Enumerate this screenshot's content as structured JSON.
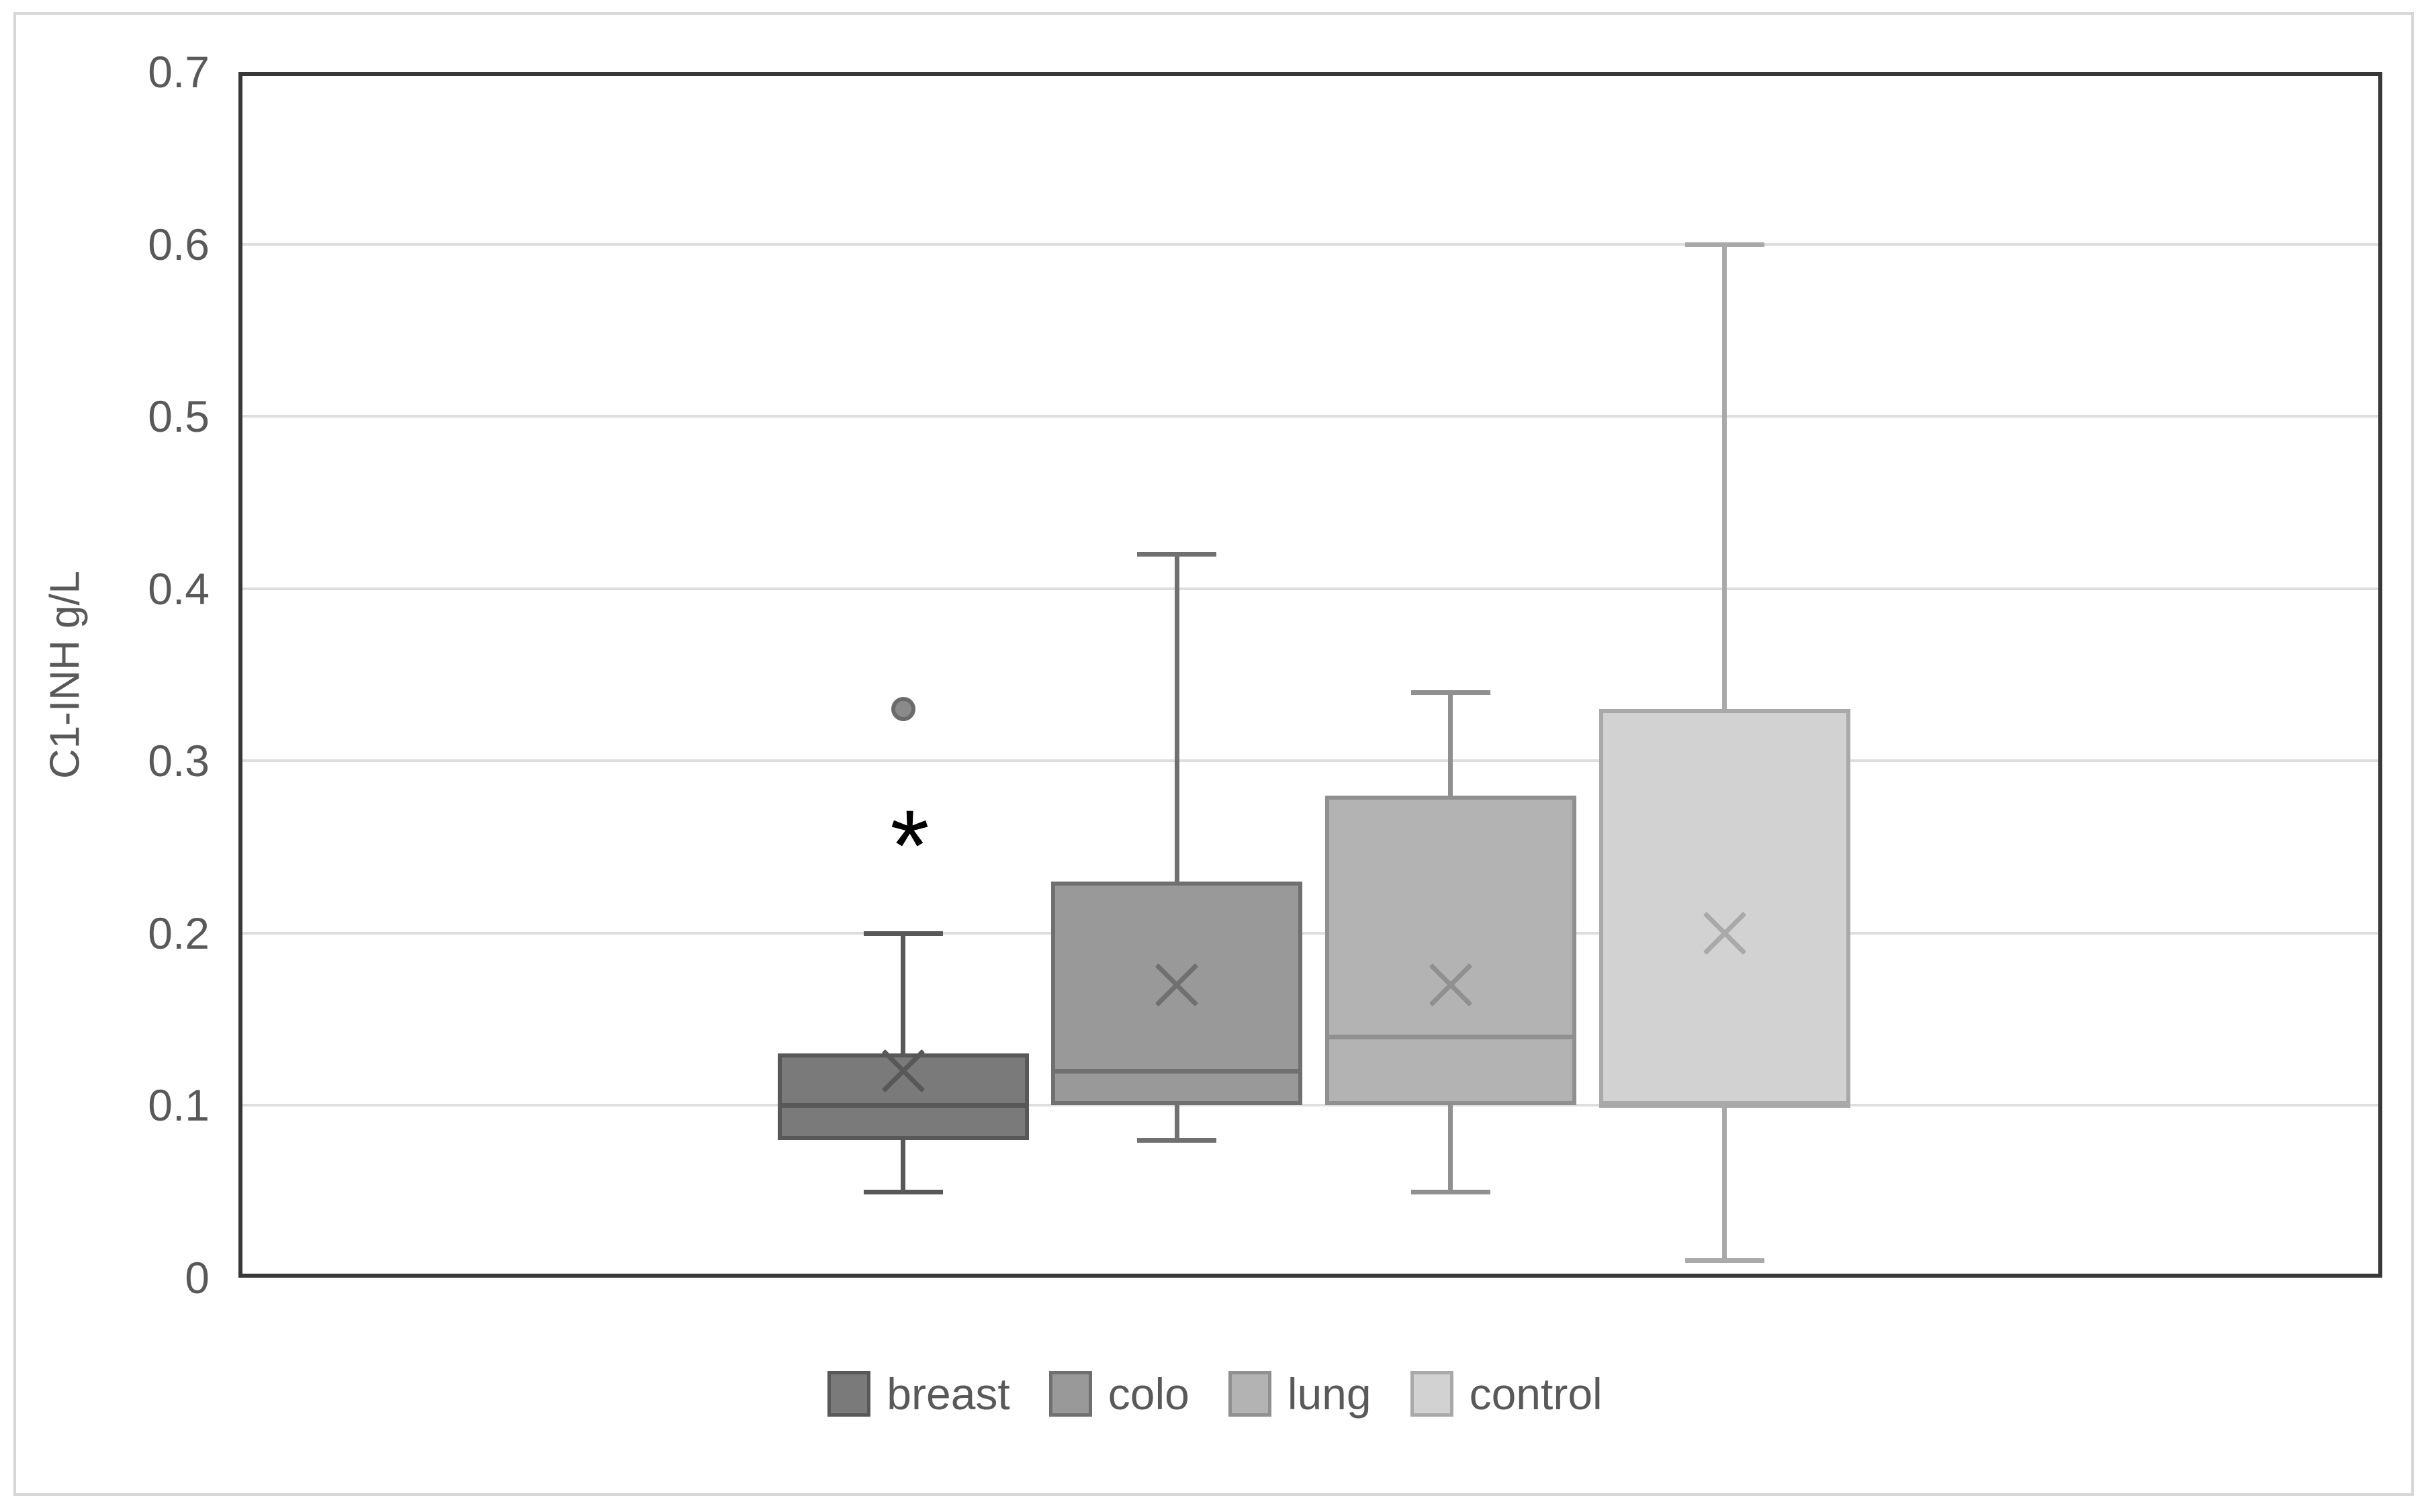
{
  "figure": {
    "background": "#ffffff",
    "frame_color": "#d7d7d7",
    "plot_border_color": "#383838",
    "gridline_color": "#dedede",
    "text_color": "#595959"
  },
  "chart_data": {
    "type": "box",
    "title": "",
    "xlabel": "",
    "ylabel": "C1-INH g/L",
    "ylim": [
      0,
      0.7
    ],
    "ytick_values": [
      0,
      0.1,
      0.2,
      0.3,
      0.4,
      0.5,
      0.6,
      0.7
    ],
    "ytick_labels": [
      "0",
      "0.1",
      "0.2",
      "0.3",
      "0.4",
      "0.5",
      "0.6",
      "0.7"
    ],
    "grid": "horizontal",
    "legend_position": "bottom",
    "series": [
      {
        "name": "breast",
        "fill": "#7a7a7a",
        "stroke": "#585858",
        "min": 0.05,
        "q1": 0.08,
        "median": 0.1,
        "q3": 0.13,
        "max": 0.2,
        "mean": 0.12,
        "outliers": [
          0.33
        ]
      },
      {
        "name": "colo",
        "fill": "#999999",
        "stroke": "#707070",
        "min": 0.08,
        "q1": 0.1,
        "median": 0.12,
        "q3": 0.23,
        "max": 0.42,
        "mean": 0.17,
        "outliers": []
      },
      {
        "name": "lung",
        "fill": "#b3b3b3",
        "stroke": "#909090",
        "min": 0.05,
        "q1": 0.1,
        "median": 0.14,
        "q3": 0.28,
        "max": 0.34,
        "mean": 0.17,
        "outliers": []
      },
      {
        "name": "control",
        "fill": "#d2d2d2",
        "stroke": "#a9a9a9",
        "min": 0.01,
        "q1": 0.1,
        "median": 0.1,
        "q3": 0.33,
        "max": 0.6,
        "mean": 0.2,
        "outliers": []
      }
    ],
    "annotations": [
      {
        "series": "breast",
        "symbol": "*",
        "value": 0.26,
        "color": "#000000"
      }
    ]
  }
}
